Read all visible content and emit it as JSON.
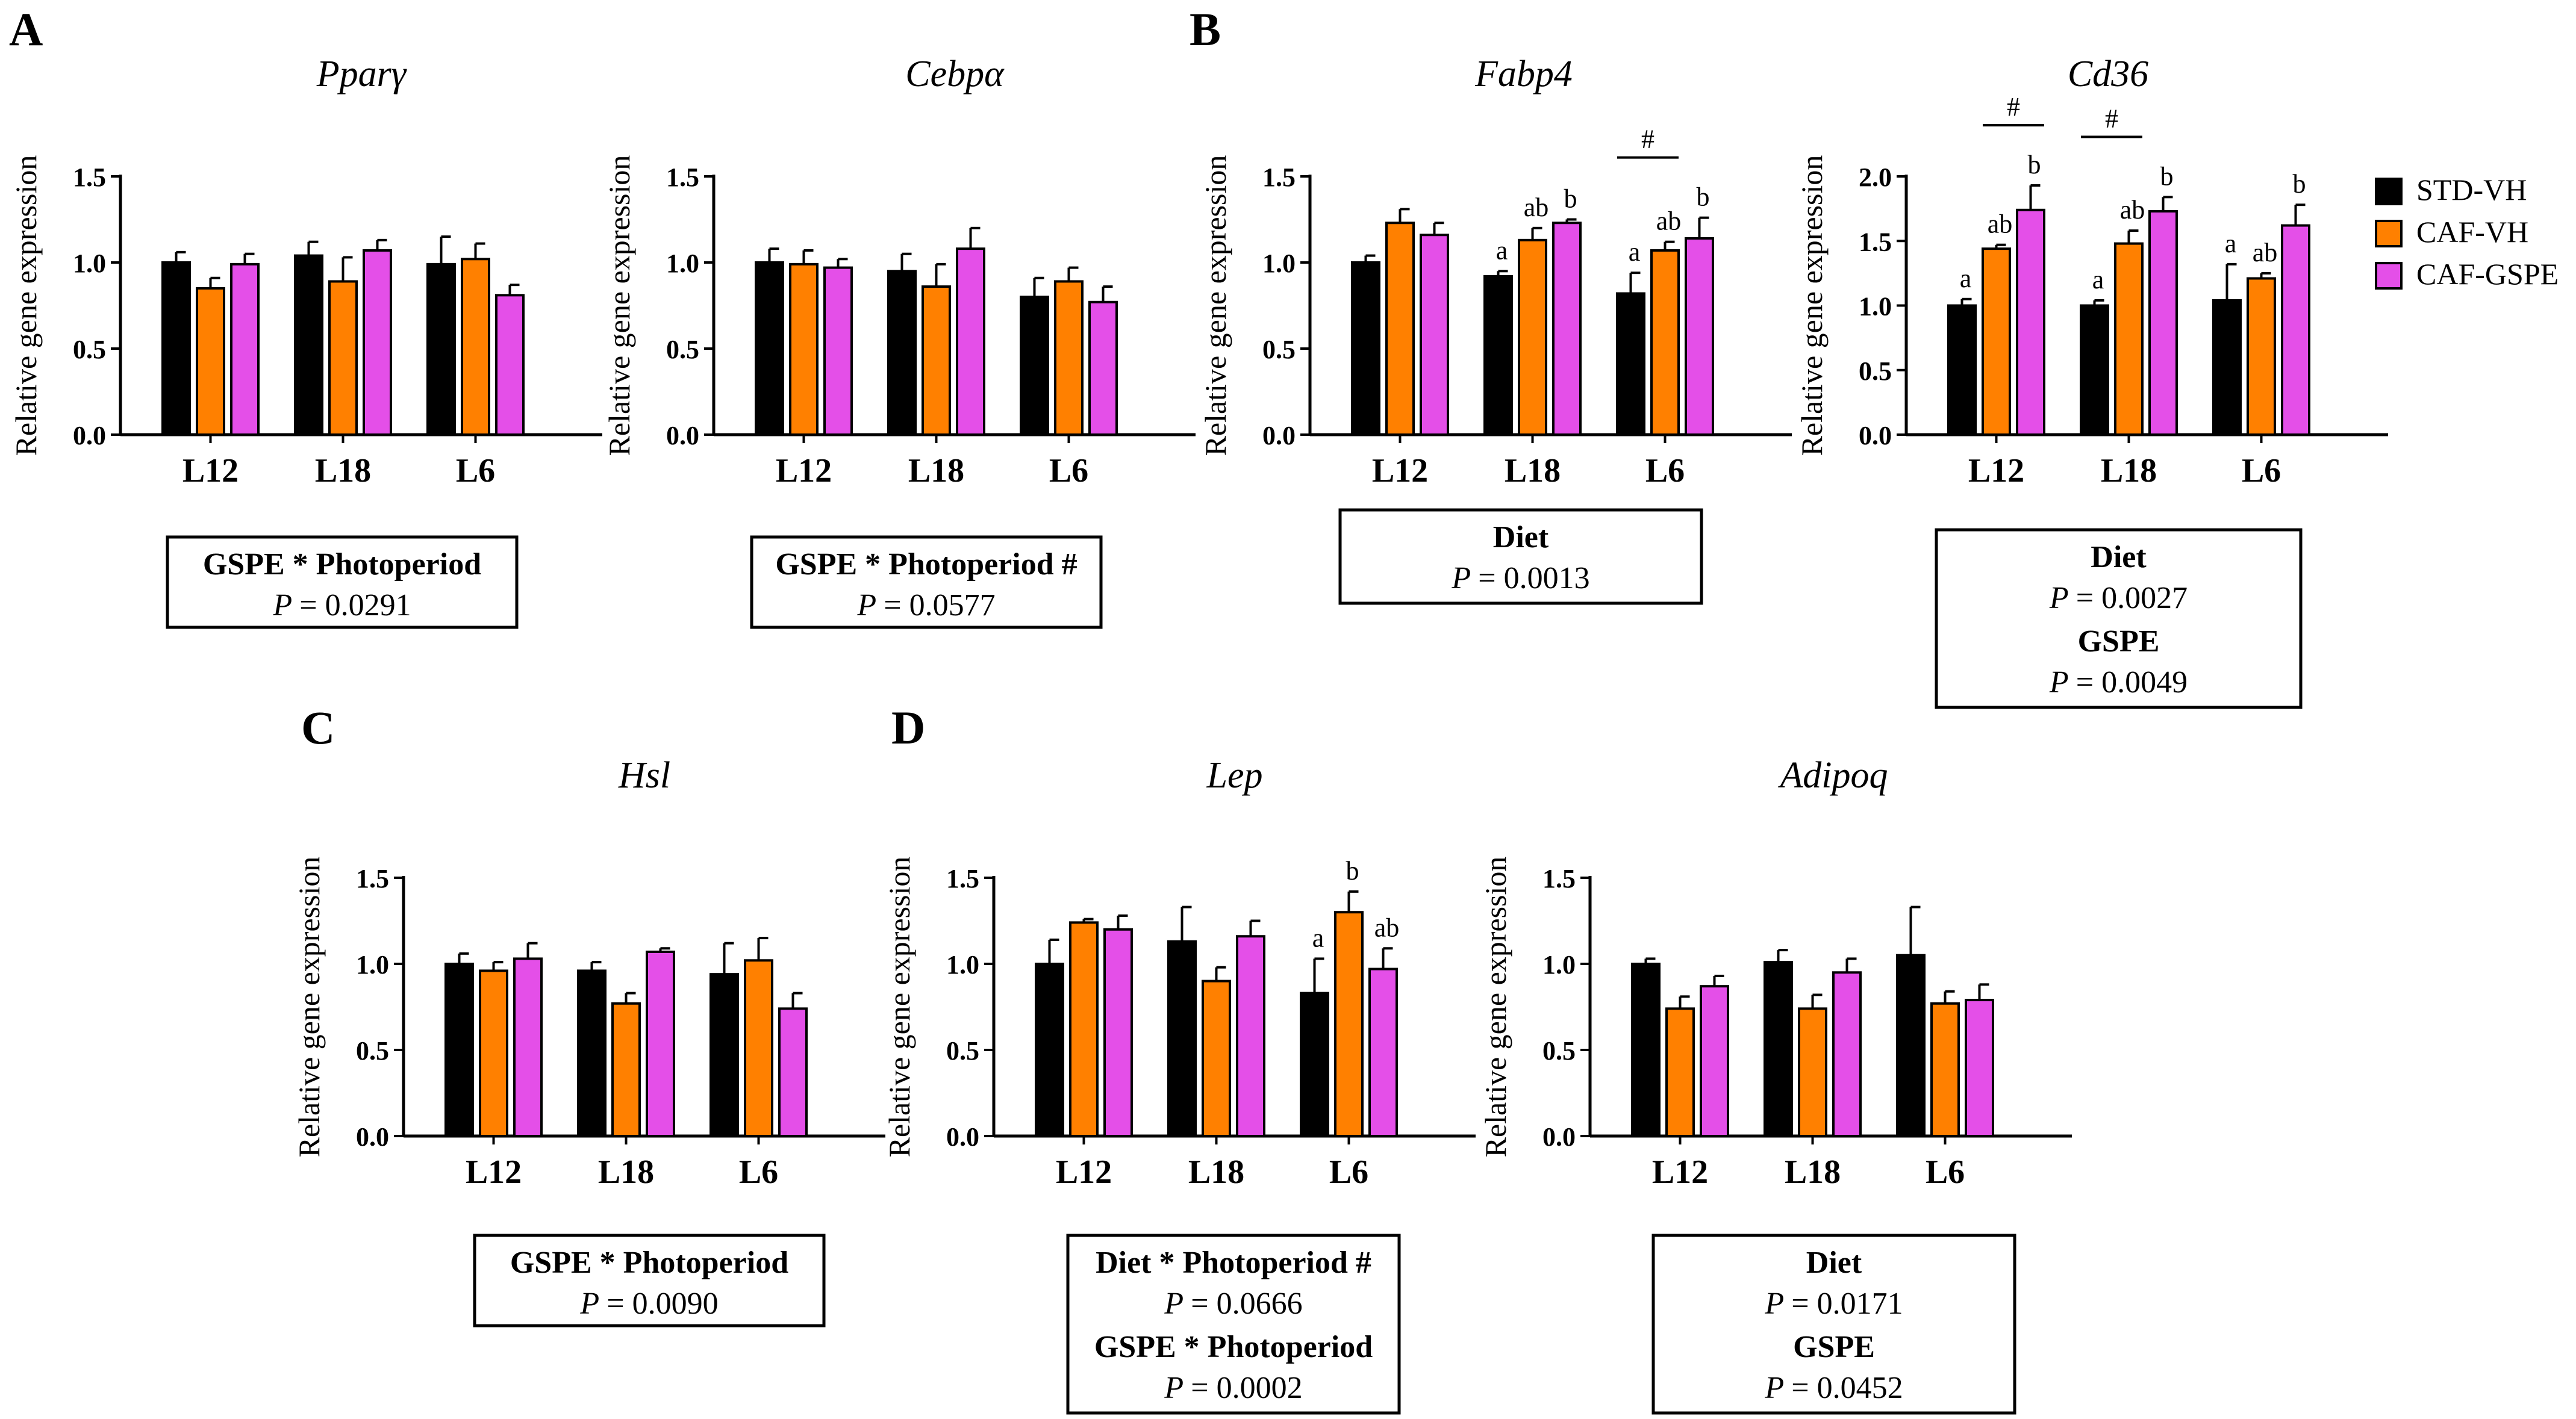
{
  "figure_title": "Gene expression panels",
  "colors": {
    "STD-VH": "#000000",
    "CAF-VH": "#FF8000",
    "CAF-GSPE": "#E44FE8"
  },
  "legend": [
    "STD-VH",
    "CAF-VH",
    "CAF-GSPE"
  ],
  "panel_letters": [
    "A",
    "B",
    "C",
    "D"
  ],
  "ylabel": "Relative gene expression",
  "chart_data": [
    {
      "type": "bar",
      "title": "Pparγ",
      "ylabel": "Relative gene expression",
      "categories": [
        "L12",
        "L18",
        "L6"
      ],
      "ylim": [
        0,
        1.5
      ],
      "yticks": [
        "0.0",
        "0.5",
        "1.0",
        "1.5"
      ],
      "series": [
        {
          "name": "STD-VH",
          "values": [
            1.0,
            1.04,
            0.99
          ],
          "errors": [
            0.06,
            0.08,
            0.16
          ]
        },
        {
          "name": "CAF-VH",
          "values": [
            0.85,
            0.89,
            1.02
          ],
          "errors": [
            0.06,
            0.14,
            0.09
          ]
        },
        {
          "name": "CAF-GSPE",
          "values": [
            0.99,
            1.07,
            0.81
          ],
          "errors": [
            0.06,
            0.06,
            0.06
          ]
        }
      ],
      "letters": [],
      "hash": [],
      "stats": [
        {
          "label": "GSPE * Photoperiod",
          "p": "= 0.0291"
        }
      ]
    },
    {
      "type": "bar",
      "title": "Cebpα",
      "ylabel": "Relative gene expression",
      "categories": [
        "L12",
        "L18",
        "L6"
      ],
      "ylim": [
        0,
        1.5
      ],
      "yticks": [
        "0.0",
        "0.5",
        "1.0",
        "1.5"
      ],
      "series": [
        {
          "name": "STD-VH",
          "values": [
            1.0,
            0.95,
            0.8
          ],
          "errors": [
            0.08,
            0.1,
            0.11
          ]
        },
        {
          "name": "CAF-VH",
          "values": [
            0.99,
            0.86,
            0.89
          ],
          "errors": [
            0.08,
            0.13,
            0.08
          ]
        },
        {
          "name": "CAF-GSPE",
          "values": [
            0.97,
            1.08,
            0.77
          ],
          "errors": [
            0.05,
            0.12,
            0.09
          ]
        }
      ],
      "letters": [],
      "hash": [],
      "stats": [
        {
          "label": "GSPE * Photoperiod #",
          "p": "= 0.0577"
        }
      ]
    },
    {
      "type": "bar",
      "title": "Fabp4",
      "ylabel": "Relative gene expression",
      "categories": [
        "L12",
        "L18",
        "L6"
      ],
      "ylim": [
        0,
        1.5
      ],
      "yticks": [
        "0.0",
        "0.5",
        "1.0",
        "1.5"
      ],
      "series": [
        {
          "name": "STD-VH",
          "values": [
            1.0,
            0.92,
            0.82
          ],
          "errors": [
            0.04,
            0.03,
            0.12
          ]
        },
        {
          "name": "CAF-VH",
          "values": [
            1.23,
            1.13,
            1.07
          ],
          "errors": [
            0.08,
            0.07,
            0.05
          ]
        },
        {
          "name": "CAF-GSPE",
          "values": [
            1.16,
            1.23,
            1.14
          ],
          "errors": [
            0.07,
            0.02,
            0.12
          ]
        }
      ],
      "letters": [
        {
          "group": 1,
          "series": 0,
          "text": "a"
        },
        {
          "group": 1,
          "series": 1,
          "text": "ab"
        },
        {
          "group": 1,
          "series": 2,
          "text": "b"
        },
        {
          "group": 2,
          "series": 0,
          "text": "a"
        },
        {
          "group": 2,
          "series": 1,
          "text": "ab"
        },
        {
          "group": 2,
          "series": 2,
          "text": "b"
        }
      ],
      "hash": [
        {
          "group": 2,
          "from": 0,
          "to": 1,
          "text": "#"
        }
      ],
      "stats": [
        {
          "label": "Diet",
          "p": "= 0.0013"
        }
      ]
    },
    {
      "type": "bar",
      "title": "Cd36",
      "ylabel": "Relative gene expression",
      "categories": [
        "L12",
        "L18",
        "L6"
      ],
      "ylim": [
        0,
        2.0
      ],
      "yticks": [
        "0.0",
        "0.5",
        "1.0",
        "1.5",
        "2.0"
      ],
      "series": [
        {
          "name": "STD-VH",
          "values": [
            1.0,
            1.0,
            1.04
          ],
          "errors": [
            0.05,
            0.04,
            0.28
          ]
        },
        {
          "name": "CAF-VH",
          "values": [
            1.44,
            1.48,
            1.21
          ],
          "errors": [
            0.03,
            0.1,
            0.04
          ]
        },
        {
          "name": "CAF-GSPE",
          "values": [
            1.74,
            1.73,
            1.62
          ],
          "errors": [
            0.19,
            0.11,
            0.16
          ]
        }
      ],
      "letters": [
        {
          "group": 0,
          "series": 0,
          "text": "a"
        },
        {
          "group": 0,
          "series": 1,
          "text": "ab"
        },
        {
          "group": 0,
          "series": 2,
          "text": "b"
        },
        {
          "group": 1,
          "series": 0,
          "text": "a"
        },
        {
          "group": 1,
          "series": 1,
          "text": "ab"
        },
        {
          "group": 1,
          "series": 2,
          "text": "b"
        },
        {
          "group": 2,
          "series": 0,
          "text": "a"
        },
        {
          "group": 2,
          "series": 1,
          "text": "ab"
        },
        {
          "group": 2,
          "series": 2,
          "text": "b"
        }
      ],
      "hash": [
        {
          "group": 0,
          "from": 1,
          "to": 2,
          "text": "#"
        },
        {
          "group": 1,
          "from": 0,
          "to": 1,
          "text": "#"
        }
      ],
      "stats": [
        {
          "label": "Diet",
          "p": "= 0.0027"
        },
        {
          "label": "GSPE",
          "p": "= 0.0049"
        }
      ]
    },
    {
      "type": "bar",
      "title": "Hsl",
      "ylabel": "Relative gene expression",
      "categories": [
        "L12",
        "L18",
        "L6"
      ],
      "ylim": [
        0,
        1.5
      ],
      "yticks": [
        "0.0",
        "0.5",
        "1.0",
        "1.5"
      ],
      "series": [
        {
          "name": "STD-VH",
          "values": [
            1.0,
            0.96,
            0.94
          ],
          "errors": [
            0.06,
            0.05,
            0.18
          ]
        },
        {
          "name": "CAF-VH",
          "values": [
            0.96,
            0.77,
            1.02
          ],
          "errors": [
            0.05,
            0.06,
            0.13
          ]
        },
        {
          "name": "CAF-GSPE",
          "values": [
            1.03,
            1.07,
            0.74
          ],
          "errors": [
            0.09,
            0.02,
            0.09
          ]
        }
      ],
      "letters": [],
      "hash": [],
      "stats": [
        {
          "label": "GSPE * Photoperiod",
          "p": "= 0.0090"
        }
      ]
    },
    {
      "type": "bar",
      "title": "Lep",
      "ylabel": "Relative gene expression",
      "categories": [
        "L12",
        "L18",
        "L6"
      ],
      "ylim": [
        0,
        1.5
      ],
      "yticks": [
        "0.0",
        "0.5",
        "1.0",
        "1.5"
      ],
      "series": [
        {
          "name": "STD-VH",
          "values": [
            1.0,
            1.13,
            0.83
          ],
          "errors": [
            0.14,
            0.2,
            0.2
          ]
        },
        {
          "name": "CAF-VH",
          "values": [
            1.24,
            0.9,
            1.3
          ],
          "errors": [
            0.02,
            0.08,
            0.12
          ]
        },
        {
          "name": "CAF-GSPE",
          "values": [
            1.2,
            1.16,
            0.97
          ],
          "errors": [
            0.08,
            0.09,
            0.12
          ]
        }
      ],
      "letters": [
        {
          "group": 2,
          "series": 0,
          "text": "a"
        },
        {
          "group": 2,
          "series": 1,
          "text": "b"
        },
        {
          "group": 2,
          "series": 2,
          "text": "ab"
        }
      ],
      "hash": [],
      "stats": [
        {
          "label": "Diet * Photoperiod #",
          "p": "= 0.0666"
        },
        {
          "label": "GSPE * Photoperiod",
          "p": "= 0.0002"
        }
      ]
    },
    {
      "type": "bar",
      "title": "Adipoq",
      "ylabel": "Relative gene expression",
      "categories": [
        "L12",
        "L18",
        "L6"
      ],
      "ylim": [
        0,
        1.5
      ],
      "yticks": [
        "0.0",
        "0.5",
        "1.0",
        "1.5"
      ],
      "series": [
        {
          "name": "STD-VH",
          "values": [
            1.0,
            1.01,
            1.05
          ],
          "errors": [
            0.03,
            0.07,
            0.28
          ]
        },
        {
          "name": "CAF-VH",
          "values": [
            0.74,
            0.74,
            0.77
          ],
          "errors": [
            0.07,
            0.08,
            0.07
          ]
        },
        {
          "name": "CAF-GSPE",
          "values": [
            0.87,
            0.95,
            0.79
          ],
          "errors": [
            0.06,
            0.08,
            0.09
          ]
        }
      ],
      "letters": [],
      "hash": [],
      "stats": [
        {
          "label": "Diet",
          "p": "= 0.0171"
        },
        {
          "label": "GSPE",
          "p": "= 0.0452"
        }
      ]
    }
  ]
}
